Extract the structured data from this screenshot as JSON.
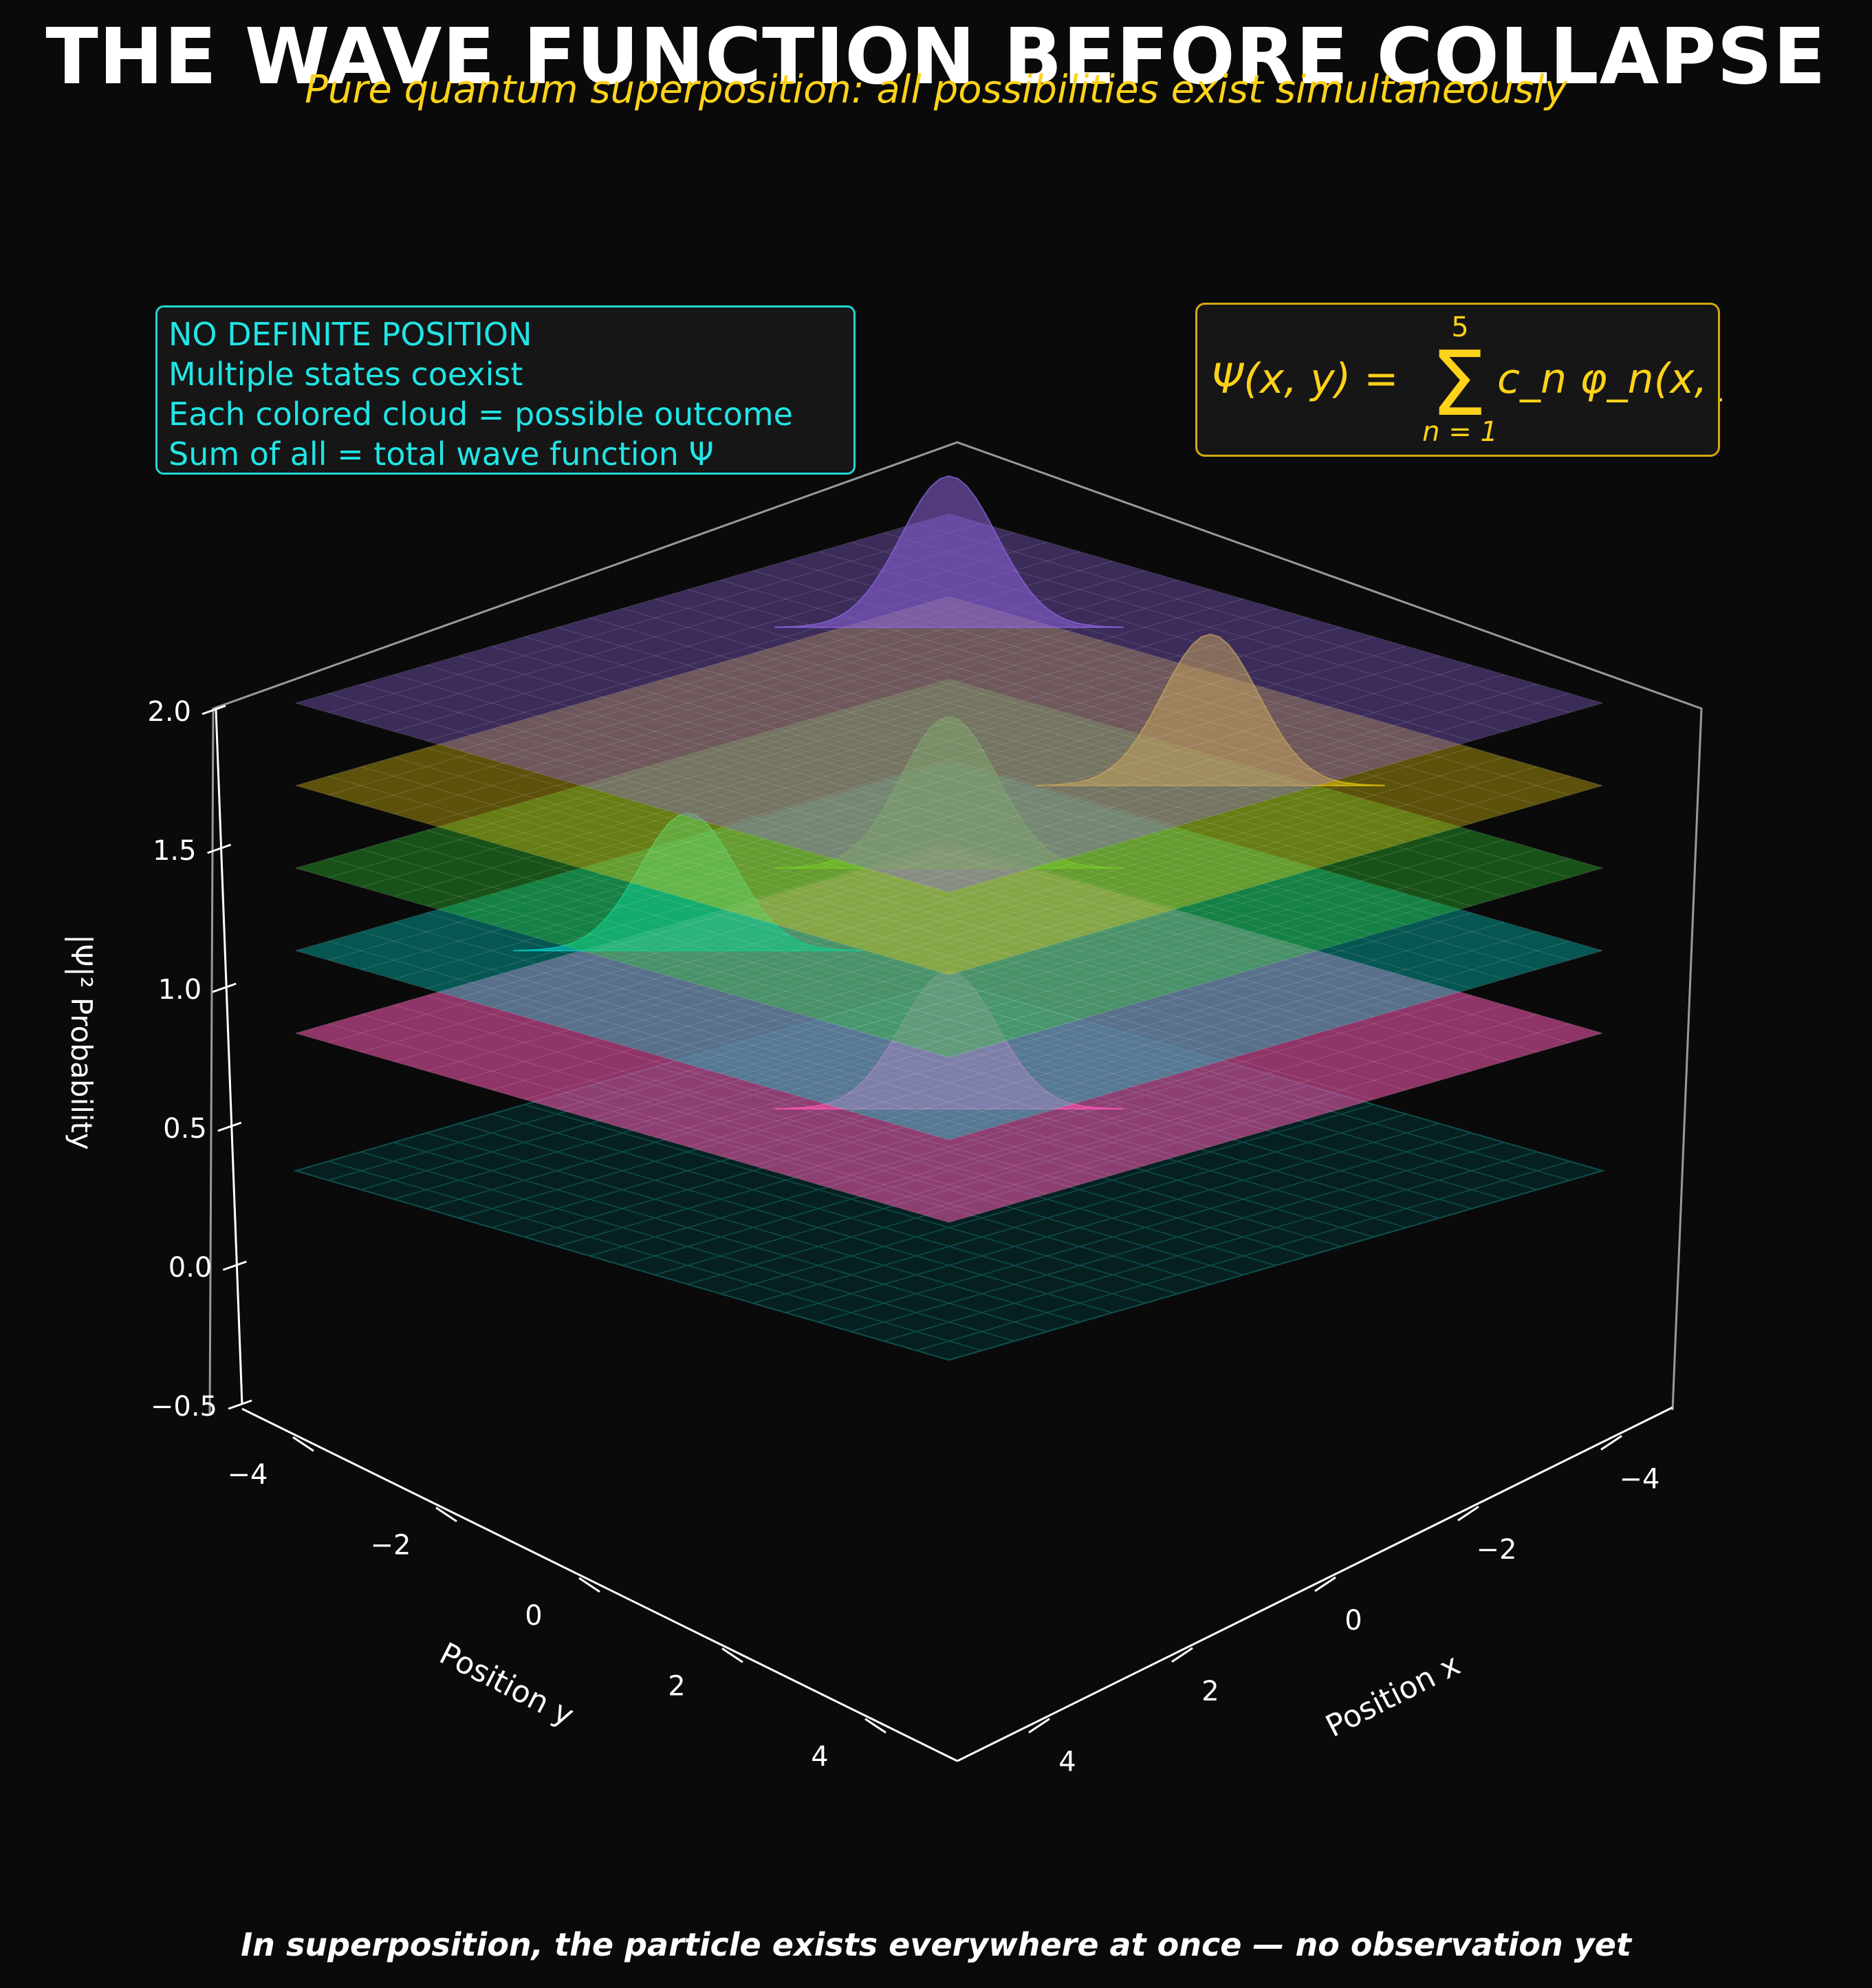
{
  "header": {
    "title": "THE WAVE FUNCTION BEFORE COLLAPSE",
    "subtitle": "Pure quantum superposition: all possibilities exist simultaneously"
  },
  "info_box": {
    "lines": [
      "NO DEFINITE POSITION",
      "Multiple states coexist",
      "Each colored cloud = possible outcome",
      "Sum of all = total wave function Ψ"
    ]
  },
  "formula": {
    "lhs": "Ψ(x, y) =",
    "upper": "5",
    "lower": "n = 1",
    "rhs": "c_n φ_n(x, y)"
  },
  "footer": "In superposition, the particle exists everywhere at once — no observation yet",
  "colors": {
    "background": "#0a0a0a",
    "title": "#ffffff",
    "accent_yellow": "#ffd21a",
    "accent_cyan": "#22e5e5"
  },
  "chart_data": {
    "type": "surface3d",
    "xlabel": "Position x",
    "ylabel": "Position y",
    "zlabel": "|Ψ|² Probability",
    "xlim": [
      -5,
      5
    ],
    "ylim": [
      -5,
      5
    ],
    "zlim": [
      -0.5,
      2.0
    ],
    "x_ticks": [
      -4,
      -2,
      0,
      2,
      4
    ],
    "y_ticks": [
      -4,
      -2,
      0,
      2,
      4
    ],
    "z_ticks": [
      -0.5,
      0.0,
      0.5,
      1.0,
      1.5,
      2.0
    ],
    "x_tick_labels": [
      "−4",
      "−2",
      "0",
      "2",
      "4"
    ],
    "y_tick_labels": [
      "−4",
      "−2",
      "0",
      "2",
      "4"
    ],
    "z_tick_labels": [
      "−0.5",
      "0.0",
      "0.5",
      "1.0",
      "1.5",
      "2.0"
    ],
    "base_grid_z": -0.5,
    "total_wavefunction_offset": 0.0,
    "series": [
      {
        "offset": 0.0,
        "color": "#ff5ab4",
        "peak_center": [
          2,
          2
        ],
        "peak_height": 0.5
      },
      {
        "offset": 0.3,
        "color": "#00d2c8",
        "peak_center": [
          2,
          -2
        ],
        "peak_height": 0.5
      },
      {
        "offset": 0.6,
        "color": "#32c832",
        "peak_center": [
          0,
          0
        ],
        "peak_height": 0.55
      },
      {
        "offset": 0.9,
        "color": "#e6c80f",
        "peak_center": [
          -2,
          2
        ],
        "peak_height": 0.55
      },
      {
        "offset": 1.2,
        "color": "#8c64dc",
        "peak_center": [
          -2,
          -2
        ],
        "peak_height": 0.55
      }
    ]
  }
}
